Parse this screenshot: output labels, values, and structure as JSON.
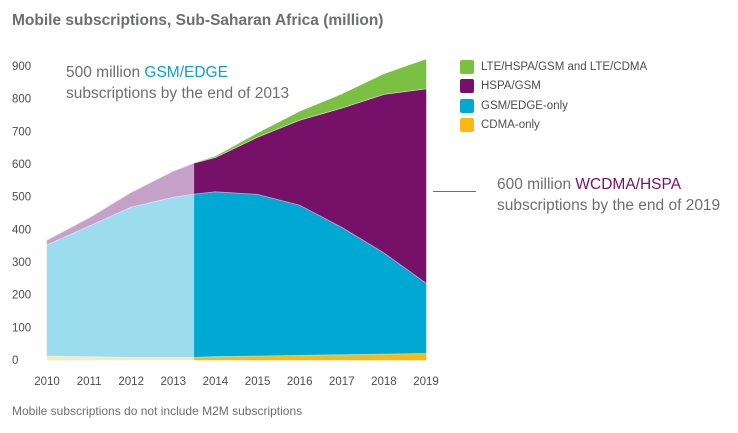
{
  "title": "Mobile subscriptions, Sub-Saharan Africa (million)",
  "footnote": "Mobile subscriptions do not include M2M subscriptions",
  "legend": [
    {
      "label": "LTE/HSPA/GSM and LTE/CDMA",
      "color": "#7ac143"
    },
    {
      "label": "HSPA/GSM",
      "color": "#761068"
    },
    {
      "label": "GSM/EDGE-only",
      "color": "#00a9d4"
    },
    {
      "label": "CDMA-only",
      "color": "#fbb810"
    }
  ],
  "annotations": {
    "left": {
      "line1_pre": "500 million ",
      "line1_hl": "GSM/EDGE",
      "line2": "subscriptions by the end of 2013"
    },
    "right": {
      "line1_pre": "600 million ",
      "line1_hl": "WCDMA/HSPA",
      "line2": "subscriptions by the end of 2019"
    }
  },
  "chart_data": {
    "type": "area",
    "stacked": true,
    "title": "Mobile subscriptions, Sub-Saharan Africa (million)",
    "xlabel": "",
    "ylabel": "",
    "x": [
      2010,
      2011,
      2012,
      2013,
      2013.5,
      2014,
      2015,
      2016,
      2017,
      2018,
      2019
    ],
    "x_ticks": [
      "2010",
      "2011",
      "2012",
      "2013",
      "2014",
      "2015",
      "2016",
      "2017",
      "2018",
      "2019"
    ],
    "y_ticks": [
      "0",
      "100",
      "200",
      "300",
      "400",
      "500",
      "600",
      "700",
      "800",
      "900"
    ],
    "ylim": [
      0,
      930
    ],
    "historical_until": 2013.5,
    "series": [
      {
        "name": "CDMA-only",
        "color": "#fbb810",
        "historical_color": "#fde9b7",
        "values": [
          12,
          10,
          8,
          8,
          8,
          10,
          12,
          14,
          16,
          18,
          20
        ]
      },
      {
        "name": "GSM/EDGE-only",
        "color": "#00a9d4",
        "historical_color": "#9bdcee",
        "values": [
          340,
          400,
          460,
          490,
          500,
          505,
          495,
          460,
          390,
          310,
          215
        ]
      },
      {
        "name": "HSPA/GSM",
        "color": "#761068",
        "historical_color": "#c5a1c9",
        "values": [
          15,
          25,
          45,
          80,
          95,
          105,
          175,
          260,
          365,
          485,
          595
        ]
      },
      {
        "name": "LTE/HSPA/GSM and LTE/CDMA",
        "color": "#7ac143",
        "historical_color": "#7ac143",
        "values": [
          0,
          0,
          0,
          0,
          0,
          3,
          12,
          26,
          42,
          62,
          90
        ]
      }
    ],
    "grid": false,
    "legend_position": "top-right"
  }
}
